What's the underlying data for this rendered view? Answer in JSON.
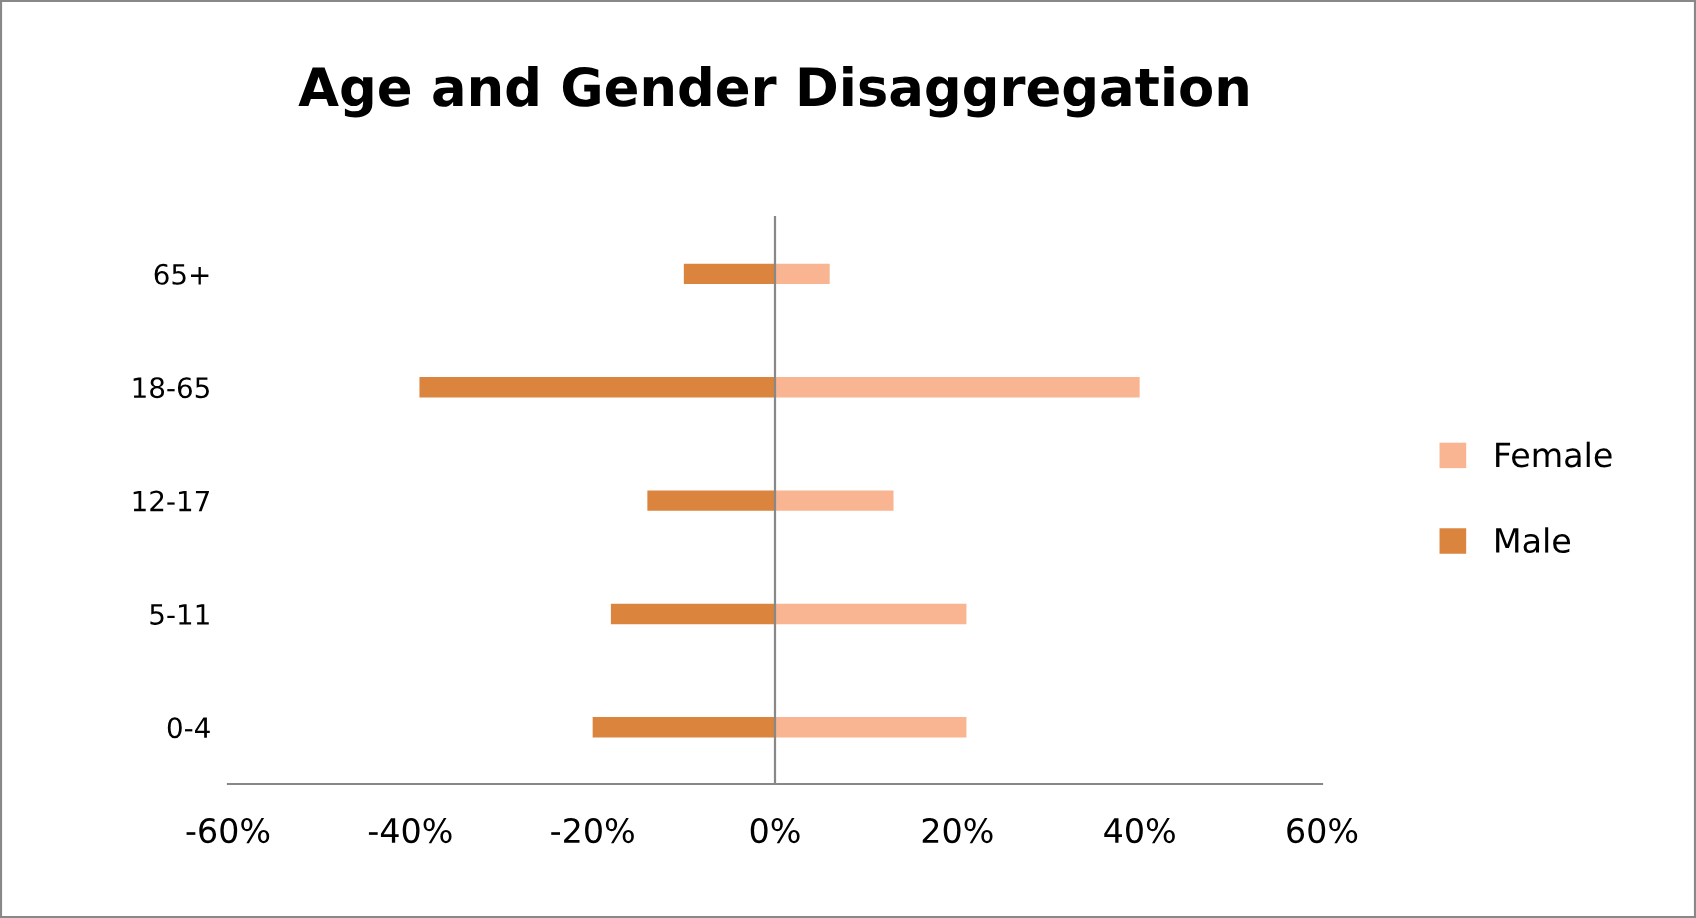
{
  "chart_data": {
    "type": "bar",
    "title": "Age and Gender Disaggregation",
    "orientation": "horizontal",
    "stacked": true,
    "categories": [
      "65+",
      "18-65",
      "12-17",
      "5-11",
      "0-4"
    ],
    "series": [
      {
        "name": "Female",
        "color": "#f9b591",
        "values": [
          6,
          40,
          13,
          21,
          21
        ]
      },
      {
        "name": "Male",
        "color": "#db843d",
        "values": [
          -10,
          -39,
          -14,
          -18,
          -20
        ]
      }
    ],
    "xlim": [
      -60,
      60
    ],
    "xticks": [
      {
        "value": -60,
        "label": "-60%"
      },
      {
        "value": -40,
        "label": "-40%"
      },
      {
        "value": -20,
        "label": "-20%"
      },
      {
        "value": 0,
        "label": "0%"
      },
      {
        "value": 20,
        "label": "20%"
      },
      {
        "value": 40,
        "label": "40%"
      },
      {
        "value": 60,
        "label": "60%"
      }
    ],
    "legend": "right"
  }
}
